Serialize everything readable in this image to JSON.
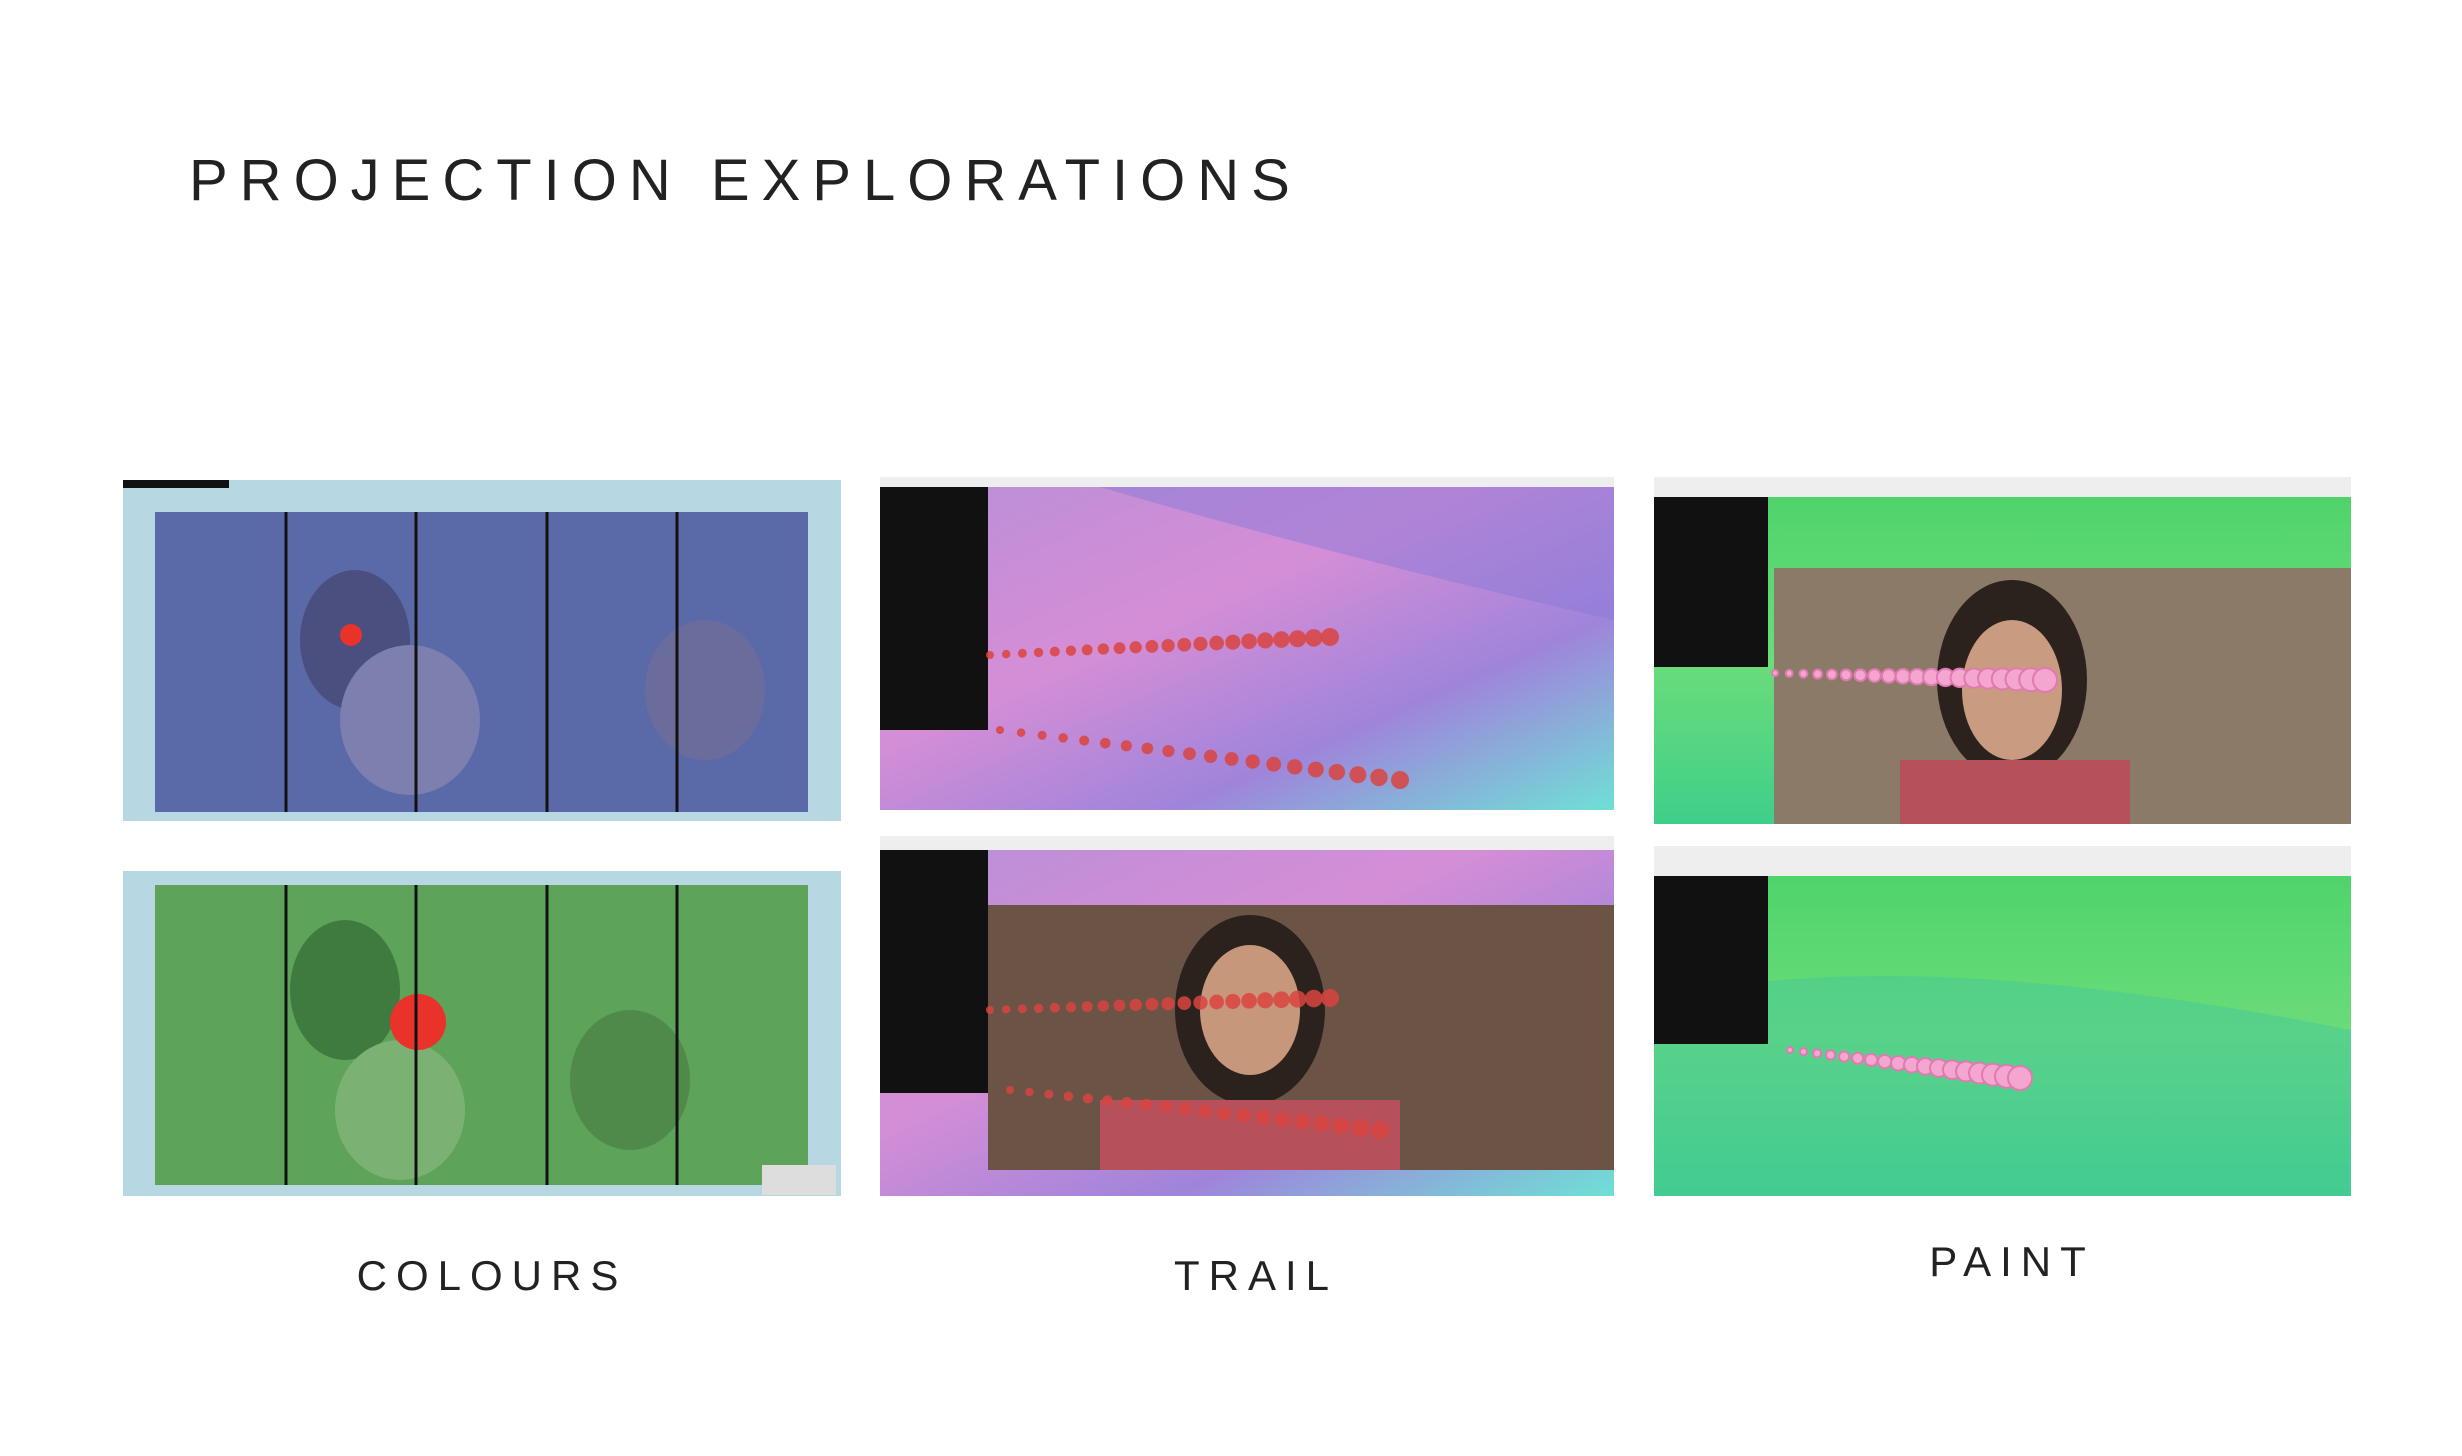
{
  "header": {
    "title": "PROJECTION EXPLORATIONS"
  },
  "captions": [
    "COLOURS",
    "TRAIL",
    "PAINT"
  ]
}
